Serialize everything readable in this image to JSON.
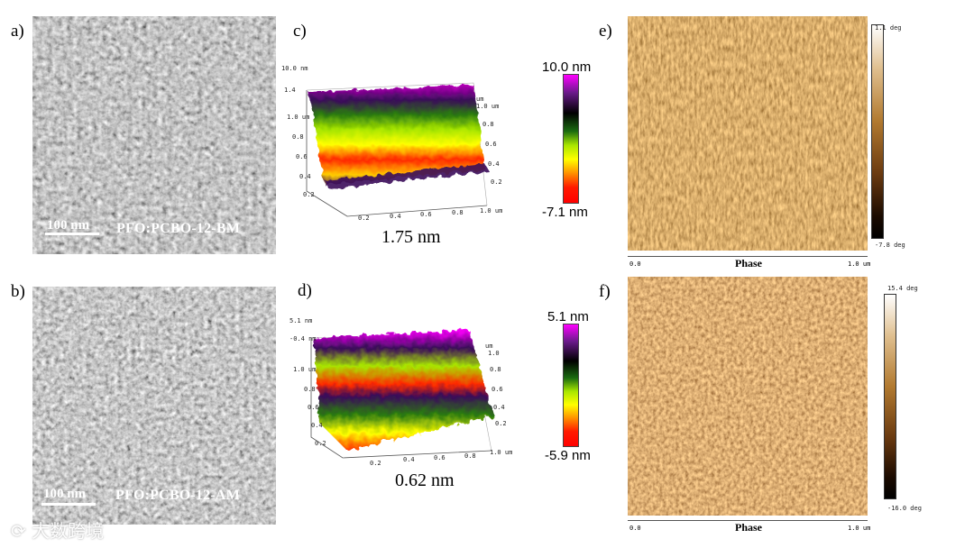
{
  "panels": {
    "a": {
      "letter": "a)",
      "scale_label": "100 nm",
      "sample_label": "PFO:PCBO-12-BM"
    },
    "b": {
      "letter": "b)",
      "scale_label": "100 nm",
      "sample_label": "PFO:PCBO-12-AM"
    },
    "c": {
      "letter": "c)",
      "roughness": "1.75 nm",
      "z_max": "10.0 nm",
      "z_min": "-7.1 nm",
      "z_axis_top": "10.0 nm",
      "z_ticks": [
        "1.4",
        "1.0 um",
        "0.8",
        "0.6",
        "0.4",
        "0.2"
      ],
      "x_ticks": [
        "0.2",
        "0.4",
        "0.6",
        "0.8",
        "1.0 um"
      ],
      "y_ticks": [
        "um",
        "1.0 um",
        "0.8",
        "0.6",
        "0.4",
        "0.2"
      ]
    },
    "d": {
      "letter": "d)",
      "roughness": "0.62 nm",
      "z_max": "5.1 nm",
      "z_min": "-5.9 nm",
      "z_axis_top": "5.1 nm",
      "z_ticks": [
        "-0.4 nm",
        "1.0 um",
        "0.8",
        "0.6",
        "0.4",
        "0.2"
      ],
      "x_ticks": [
        "0.2",
        "0.4",
        "0.6",
        "0.8",
        "1.0 um"
      ],
      "y_ticks": [
        "um",
        "1.0",
        "0.8",
        "0.6",
        "0.4",
        "0.2"
      ]
    },
    "e": {
      "letter": "e)",
      "cb_max": "1.1 deg",
      "cb_min": "-7.8 deg",
      "axis_title": "Phase",
      "x_start": "0.0",
      "x_end": "1.0 um"
    },
    "f": {
      "letter": "f)",
      "cb_max": "15.4 deg",
      "cb_min": "-16.0 deg",
      "axis_title": "Phase",
      "x_start": "0.0",
      "x_end": "1.0 um"
    }
  },
  "watermark": "大数跨境",
  "colors": {
    "afm_topo": [
      "#ff00ff",
      "#3a0a5a",
      "#000000",
      "#2a7a10",
      "#a8e600",
      "#ffff00",
      "#ff2a00"
    ],
    "phase": [
      "#ffffff",
      "#c88a3a",
      "#7a4010",
      "#000000"
    ]
  }
}
